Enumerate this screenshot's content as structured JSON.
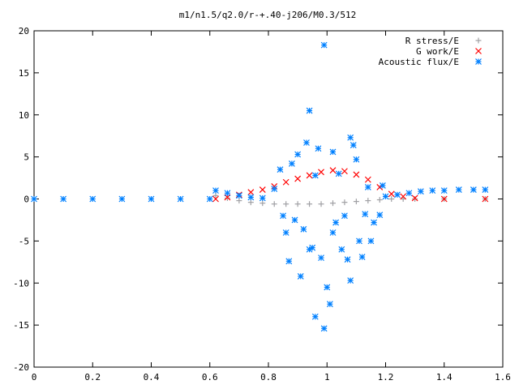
{
  "chart_data": {
    "type": "scatter",
    "title": "m1/n1.5/q2.0/r-+.40-j206/M0.3/512",
    "xlabel": "",
    "ylabel": "",
    "xlim": [
      0,
      1.6
    ],
    "ylim": [
      -20,
      20
    ],
    "x_ticks": [
      "0",
      "0.2",
      "0.4",
      "0.6",
      "0.8",
      "1",
      "1.2",
      "1.4",
      "1.6"
    ],
    "y_ticks": [
      "-20",
      "-15",
      "-10",
      "-5",
      "0",
      "5",
      "10",
      "15",
      "20"
    ],
    "grid": false,
    "legend_position": "top-right",
    "series": [
      {
        "name": "R stress/E",
        "color": "#a0a0a4",
        "marker": "plus",
        "points": [
          [
            0.62,
            0.4
          ],
          [
            0.66,
            0.1
          ],
          [
            0.7,
            -0.2
          ],
          [
            0.74,
            -0.4
          ],
          [
            0.78,
            -0.5
          ],
          [
            0.82,
            -0.6
          ],
          [
            0.86,
            -0.6
          ],
          [
            0.9,
            -0.6
          ],
          [
            0.94,
            -0.6
          ],
          [
            0.98,
            -0.6
          ],
          [
            1.02,
            -0.5
          ],
          [
            1.06,
            -0.4
          ],
          [
            1.1,
            -0.3
          ],
          [
            1.14,
            -0.2
          ],
          [
            1.18,
            -0.1
          ],
          [
            1.22,
            0.0
          ],
          [
            1.26,
            0.0
          ],
          [
            1.3,
            0.0
          ],
          [
            1.4,
            0.0
          ],
          [
            1.54,
            0.0
          ]
        ]
      },
      {
        "name": "G work/E",
        "color": "#ff0000",
        "marker": "cross",
        "points": [
          [
            0.62,
            0.0
          ],
          [
            0.66,
            0.2
          ],
          [
            0.7,
            0.5
          ],
          [
            0.74,
            0.8
          ],
          [
            0.78,
            1.1
          ],
          [
            0.82,
            1.5
          ],
          [
            0.86,
            2.0
          ],
          [
            0.9,
            2.4
          ],
          [
            0.94,
            2.8
          ],
          [
            0.98,
            3.2
          ],
          [
            1.02,
            3.4
          ],
          [
            1.06,
            3.3
          ],
          [
            1.1,
            2.9
          ],
          [
            1.14,
            2.3
          ],
          [
            1.18,
            1.4
          ],
          [
            1.22,
            0.6
          ],
          [
            1.26,
            0.3
          ],
          [
            1.3,
            0.1
          ],
          [
            1.4,
            0.0
          ],
          [
            1.54,
            0.0
          ]
        ]
      },
      {
        "name": "Acoustic flux/E",
        "color": "#0080ff",
        "marker": "star",
        "points": [
          [
            0.0,
            0.0
          ],
          [
            0.1,
            0.0
          ],
          [
            0.2,
            0.0
          ],
          [
            0.3,
            0.0
          ],
          [
            0.4,
            0.0
          ],
          [
            0.5,
            0.0
          ],
          [
            0.6,
            0.0
          ],
          [
            0.62,
            1.0
          ],
          [
            0.66,
            0.7
          ],
          [
            0.7,
            0.4
          ],
          [
            0.74,
            0.2
          ],
          [
            0.78,
            0.1
          ],
          [
            0.82,
            1.2
          ],
          [
            0.84,
            3.5
          ],
          [
            0.85,
            -2.0
          ],
          [
            0.86,
            -4.0
          ],
          [
            0.87,
            -7.4
          ],
          [
            0.88,
            4.2
          ],
          [
            0.89,
            -2.5
          ],
          [
            0.9,
            5.3
          ],
          [
            0.91,
            -9.2
          ],
          [
            0.92,
            -3.6
          ],
          [
            0.93,
            6.7
          ],
          [
            0.94,
            -6.0
          ],
          [
            0.94,
            10.5
          ],
          [
            0.95,
            -5.8
          ],
          [
            0.96,
            2.8
          ],
          [
            0.96,
            -14.0
          ],
          [
            0.97,
            6.0
          ],
          [
            0.98,
            -7.0
          ],
          [
            0.99,
            18.3
          ],
          [
            0.99,
            -15.4
          ],
          [
            1.0,
            -10.5
          ],
          [
            1.01,
            -12.5
          ],
          [
            1.02,
            5.6
          ],
          [
            1.02,
            -4.0
          ],
          [
            1.03,
            -2.8
          ],
          [
            1.04,
            3.0
          ],
          [
            1.05,
            -6.0
          ],
          [
            1.06,
            -2.0
          ],
          [
            1.07,
            -7.2
          ],
          [
            1.08,
            -9.7
          ],
          [
            1.08,
            7.3
          ],
          [
            1.09,
            6.4
          ],
          [
            1.1,
            4.7
          ],
          [
            1.11,
            -5.0
          ],
          [
            1.12,
            -6.9
          ],
          [
            1.13,
            -1.8
          ],
          [
            1.14,
            1.4
          ],
          [
            1.15,
            -5.0
          ],
          [
            1.16,
            -2.8
          ],
          [
            1.18,
            -1.9
          ],
          [
            1.19,
            1.6
          ],
          [
            1.2,
            0.3
          ],
          [
            1.24,
            0.5
          ],
          [
            1.28,
            0.7
          ],
          [
            1.32,
            0.9
          ],
          [
            1.36,
            1.0
          ],
          [
            1.4,
            1.0
          ],
          [
            1.45,
            1.1
          ],
          [
            1.5,
            1.1
          ],
          [
            1.54,
            1.1
          ]
        ]
      }
    ]
  }
}
